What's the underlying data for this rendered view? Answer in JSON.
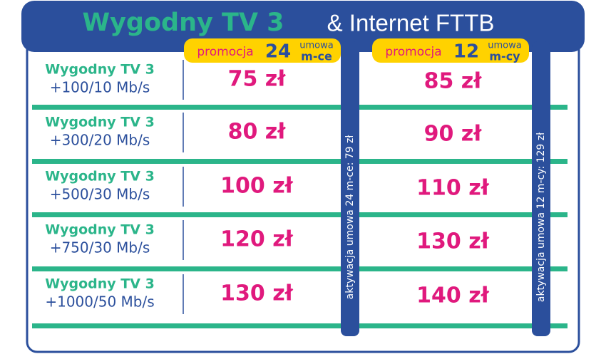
{
  "header": {
    "title_brand": "Wygodny TV 3",
    "title_rest": "& Internet FTTB"
  },
  "columns": [
    {
      "promo": "promocja",
      "months": "24",
      "contract": "umowa",
      "unit": "m-ce",
      "activation": "aktywacja umowa 24 m-ce: 79 zł"
    },
    {
      "promo": "promocja",
      "months": "12",
      "contract": "umowa",
      "unit": "m-cy",
      "activation": "aktywacja umowa 12 m-cy: 129 zł"
    }
  ],
  "rows": [
    {
      "name": "Wygodny TV 3",
      "speed": "+100/10 Mb/s",
      "prices": [
        "75 zł",
        "85 zł"
      ]
    },
    {
      "name": "Wygodny TV 3",
      "speed": "+300/20 Mb/s",
      "prices": [
        "80 zł",
        "90 zł"
      ]
    },
    {
      "name": "Wygodny TV 3",
      "speed": "+500/30 Mb/s",
      "prices": [
        "100 zł",
        "110 zł"
      ]
    },
    {
      "name": "Wygodny TV 3",
      "speed": "+750/30 Mb/s",
      "prices": [
        "120 zł",
        "130 zł"
      ]
    },
    {
      "name": "Wygodny TV 3",
      "speed": "+1000/50 Mb/s",
      "prices": [
        "130 zł",
        "140 zł"
      ]
    }
  ]
}
